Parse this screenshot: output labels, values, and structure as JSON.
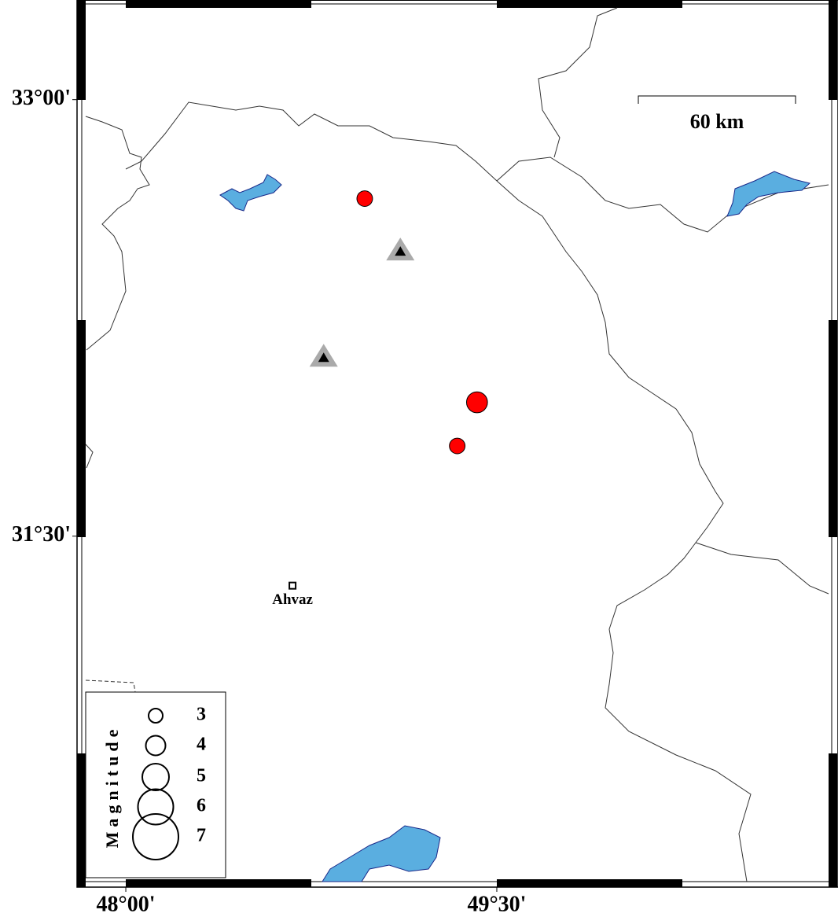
{
  "map": {
    "xlim": [
      47.806,
      50.87
    ],
    "ylim": [
      30.313,
      33.337
    ],
    "xticks": [
      {
        "value": 48,
        "label": "48°00'"
      },
      {
        "value": 49.5,
        "label": "49°30'"
      }
    ],
    "yticks": [
      {
        "value": 33,
        "label": "33°00'"
      },
      {
        "value": 31.5,
        "label": "31°30'"
      }
    ],
    "scale_label": "60 km",
    "city": {
      "name": "Ahvaz",
      "lon": 48.674,
      "lat": 31.33
    },
    "events": {
      "color": "#ff0000",
      "lon": [
        48.966,
        49.42,
        49.34
      ],
      "lat": [
        32.66,
        31.96,
        31.81
      ],
      "magnitude": [
        3.3,
        4.2,
        3.3
      ]
    },
    "stations": {
      "lon": [
        49.11,
        48.8
      ],
      "lat": [
        32.48,
        32.115
      ]
    },
    "legend": {
      "title": "Magnitude",
      "magnitudes": [
        3,
        4,
        5,
        6,
        7
      ]
    }
  }
}
